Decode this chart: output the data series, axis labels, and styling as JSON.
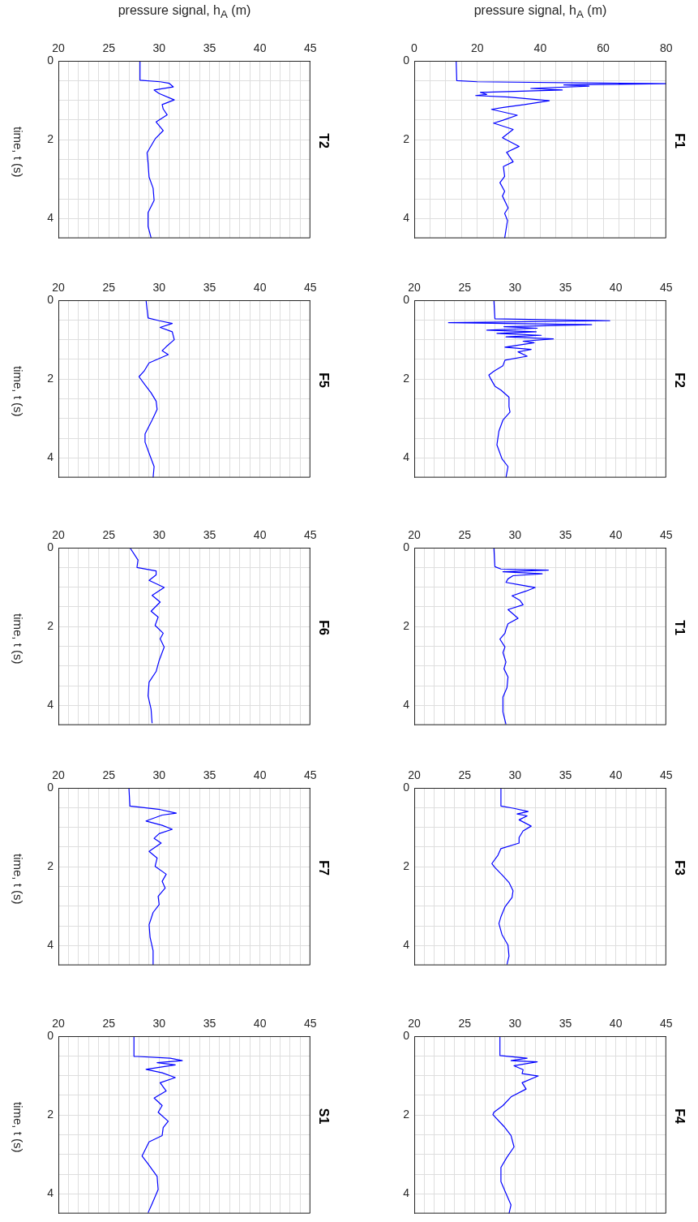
{
  "chart_data": [
    {
      "type": "line",
      "title": "F1",
      "xlabel": "pressure signal,  h$_{A}$ (m)",
      "color": "#0000ff",
      "grid": true,
      "ylim": [
        4.5,
        0
      ],
      "yticks": [
        0,
        {
          "value": 0.5,
          "label": null
        },
        {
          "value": 1,
          "label": null
        },
        {
          "value": 1.5,
          "label": null
        },
        2,
        {
          "value": 2.5,
          "label": null
        },
        {
          "value": 3,
          "label": null
        },
        {
          "value": 3.5,
          "label": null
        },
        4,
        {
          "value": 4.5,
          "label": null
        }
      ],
      "xlim": [
        0,
        80
      ],
      "xticks": [
        0,
        {
          "value": 5,
          "label": null
        },
        {
          "value": 10,
          "label": null
        },
        {
          "value": 15,
          "label": null
        },
        20,
        {
          "value": 25,
          "label": null
        },
        {
          "value": 30,
          "label": null
        },
        {
          "value": 35,
          "label": null
        },
        40,
        {
          "value": 45,
          "label": null
        },
        {
          "value": 50,
          "label": null
        },
        {
          "value": 55,
          "label": null
        },
        60,
        {
          "value": 65,
          "label": null
        },
        {
          "value": 70,
          "label": null
        },
        {
          "value": 75,
          "label": null
        },
        80
      ],
      "values": [
        0,
        0.5,
        0.53,
        0.58,
        0.61,
        0.64,
        0.7,
        0.74,
        0.8,
        0.85,
        0.88,
        0.92,
        1.01,
        1.11,
        1.18,
        1.23,
        1.38,
        1.51,
        1.58,
        1.74,
        1.95,
        2.17,
        2.32,
        2.56,
        2.68,
        2.93,
        3.09,
        3.31,
        3.43,
        3.73,
        3.87,
        4.05,
        4.5
      ],
      "x": [
        13.3,
        13.5,
        20,
        80,
        47.5,
        55.5,
        37,
        47,
        21,
        23,
        19.5,
        30,
        42.9,
        35,
        28.3,
        24.5,
        32.7,
        28,
        25.2,
        31.4,
        28,
        33.3,
        29.3,
        31.4,
        28.3,
        28.7,
        27.2,
        28.7,
        28,
        29.8,
        28.7,
        29.6,
        28.7
      ]
    },
    {
      "type": "line",
      "title": "F2",
      "color": "#0000ff",
      "grid": true,
      "ylim": [
        4.5,
        0
      ],
      "yticks": [
        0,
        {
          "value": 0.5,
          "label": null
        },
        {
          "value": 1,
          "label": null
        },
        {
          "value": 1.5,
          "label": null
        },
        2,
        {
          "value": 2.5,
          "label": null
        },
        {
          "value": 3,
          "label": null
        },
        {
          "value": 3.5,
          "label": null
        },
        4,
        {
          "value": 4.5,
          "label": null
        }
      ],
      "xlim": [
        20,
        45
      ],
      "xticks": [
        20,
        {
          "value": 21,
          "label": null
        },
        {
          "value": 22,
          "label": null
        },
        {
          "value": 23,
          "label": null
        },
        {
          "value": 24,
          "label": null
        },
        25,
        {
          "value": 26,
          "label": null
        },
        {
          "value": 27,
          "label": null
        },
        {
          "value": 28,
          "label": null
        },
        {
          "value": 29,
          "label": null
        },
        30,
        {
          "value": 31,
          "label": null
        },
        {
          "value": 32,
          "label": null
        },
        {
          "value": 33,
          "label": null
        },
        {
          "value": 34,
          "label": null
        },
        35,
        {
          "value": 36,
          "label": null
        },
        {
          "value": 37,
          "label": null
        },
        {
          "value": 38,
          "label": null
        },
        {
          "value": 39,
          "label": null
        },
        40,
        {
          "value": 41,
          "label": null
        },
        {
          "value": 42,
          "label": null
        },
        {
          "value": 43,
          "label": null
        },
        {
          "value": 44,
          "label": null
        },
        45
      ],
      "values": [
        0,
        0.47,
        0.52,
        0.57,
        0.62,
        0.67,
        0.71,
        0.76,
        0.8,
        0.84,
        0.89,
        0.93,
        0.98,
        1.04,
        1.08,
        1.19,
        1.25,
        1.31,
        1.42,
        1.52,
        1.66,
        1.8,
        1.9,
        2.0,
        2.18,
        2.28,
        2.46,
        2.7,
        2.84,
        3.04,
        3.32,
        3.67,
        4.02,
        4.22,
        4.5
      ],
      "x": [
        27.9,
        28.0,
        39.4,
        23.4,
        37.6,
        28.9,
        32.2,
        27.2,
        32.1,
        28.2,
        32.6,
        29.1,
        33.8,
        30.8,
        31.9,
        29.0,
        31.6,
        30.3,
        31.2,
        29.0,
        28.8,
        27.9,
        27.4,
        27.6,
        28.0,
        28.6,
        29.4,
        29.4,
        29.5,
        28.8,
        28.4,
        28.2,
        28.7,
        29.3,
        29.1
      ]
    },
    {
      "type": "line",
      "title": "T1",
      "color": "#0000ff",
      "grid": true,
      "ylim": [
        4.5,
        0
      ],
      "yticks": [
        0,
        {
          "value": 0.5,
          "label": null
        },
        {
          "value": 1,
          "label": null
        },
        {
          "value": 1.5,
          "label": null
        },
        2,
        {
          "value": 2.5,
          "label": null
        },
        {
          "value": 3,
          "label": null
        },
        {
          "value": 3.5,
          "label": null
        },
        4,
        {
          "value": 4.5,
          "label": null
        }
      ],
      "xlim": [
        20,
        45
      ],
      "xticks": [
        20,
        {
          "value": 21,
          "label": null
        },
        {
          "value": 22,
          "label": null
        },
        {
          "value": 23,
          "label": null
        },
        {
          "value": 24,
          "label": null
        },
        25,
        {
          "value": 26,
          "label": null
        },
        {
          "value": 27,
          "label": null
        },
        {
          "value": 28,
          "label": null
        },
        {
          "value": 29,
          "label": null
        },
        30,
        {
          "value": 31,
          "label": null
        },
        {
          "value": 32,
          "label": null
        },
        {
          "value": 33,
          "label": null
        },
        {
          "value": 34,
          "label": null
        },
        35,
        {
          "value": 36,
          "label": null
        },
        {
          "value": 37,
          "label": null
        },
        {
          "value": 38,
          "label": null
        },
        {
          "value": 39,
          "label": null
        },
        40,
        {
          "value": 41,
          "label": null
        },
        {
          "value": 42,
          "label": null
        },
        {
          "value": 43,
          "label": null
        },
        {
          "value": 44,
          "label": null
        },
        45
      ],
      "values": [
        0,
        0.48,
        0.54,
        0.57,
        0.61,
        0.66,
        0.71,
        0.79,
        0.88,
        0.94,
        1.01,
        1.1,
        1.22,
        1.34,
        1.45,
        1.57,
        1.79,
        1.93,
        2.07,
        2.17,
        2.32,
        2.52,
        2.66,
        2.9,
        3.07,
        3.28,
        3.55,
        3.79,
        4.17,
        4.48
      ],
      "x": [
        27.9,
        28.0,
        28.6,
        33.3,
        28.8,
        32.7,
        29.8,
        29.3,
        29.1,
        30.4,
        32.0,
        31.1,
        29.7,
        30.5,
        30.8,
        29.3,
        30.3,
        29.3,
        29.1,
        29.0,
        28.5,
        29.0,
        28.8,
        29.1,
        28.9,
        29.3,
        29.2,
        28.8,
        28.8,
        29.1
      ]
    },
    {
      "type": "line",
      "title": "F3",
      "color": "#0000ff",
      "grid": true,
      "ylim": [
        4.5,
        0
      ],
      "yticks": [
        0,
        {
          "value": 0.5,
          "label": null
        },
        {
          "value": 1,
          "label": null
        },
        {
          "value": 1.5,
          "label": null
        },
        2,
        {
          "value": 2.5,
          "label": null
        },
        {
          "value": 3,
          "label": null
        },
        {
          "value": 3.5,
          "label": null
        },
        4,
        {
          "value": 4.5,
          "label": null
        }
      ],
      "xlim": [
        20,
        45
      ],
      "xticks": [
        20,
        {
          "value": 21,
          "label": null
        },
        {
          "value": 22,
          "label": null
        },
        {
          "value": 23,
          "label": null
        },
        {
          "value": 24,
          "label": null
        },
        25,
        {
          "value": 26,
          "label": null
        },
        {
          "value": 27,
          "label": null
        },
        {
          "value": 28,
          "label": null
        },
        {
          "value": 29,
          "label": null
        },
        30,
        {
          "value": 31,
          "label": null
        },
        {
          "value": 32,
          "label": null
        },
        {
          "value": 33,
          "label": null
        },
        {
          "value": 34,
          "label": null
        },
        35,
        {
          "value": 36,
          "label": null
        },
        {
          "value": 37,
          "label": null
        },
        {
          "value": 38,
          "label": null
        },
        {
          "value": 39,
          "label": null
        },
        40,
        {
          "value": 41,
          "label": null
        },
        {
          "value": 42,
          "label": null
        },
        {
          "value": 43,
          "label": null
        },
        {
          "value": 44,
          "label": null
        },
        45
      ],
      "values": [
        0,
        0.46,
        0.52,
        0.6,
        0.66,
        0.71,
        0.81,
        0.97,
        1.09,
        1.26,
        1.4,
        1.54,
        1.71,
        1.92,
        2.02,
        2.23,
        2.4,
        2.61,
        2.78,
        3.02,
        3.27,
        3.44,
        3.72,
        3.99,
        4.27,
        4.48
      ],
      "x": [
        28.6,
        28.6,
        29.9,
        31.3,
        30.2,
        31.2,
        30.4,
        31.6,
        30.8,
        30.4,
        30.4,
        28.6,
        28.3,
        27.7,
        28.0,
        28.8,
        29.4,
        29.8,
        29.7,
        29.0,
        28.6,
        28.4,
        28.7,
        29.3,
        29.4,
        29.2
      ]
    },
    {
      "type": "line",
      "title": "F4",
      "color": "#0000ff",
      "grid": true,
      "ylim": [
        4.5,
        0
      ],
      "yticks": [
        0,
        {
          "value": 0.5,
          "label": null
        },
        {
          "value": 1,
          "label": null
        },
        {
          "value": 1.5,
          "label": null
        },
        2,
        {
          "value": 2.5,
          "label": null
        },
        {
          "value": 3,
          "label": null
        },
        {
          "value": 3.5,
          "label": null
        },
        4,
        {
          "value": 4.5,
          "label": null
        }
      ],
      "xlim": [
        20,
        45
      ],
      "xticks": [
        20,
        {
          "value": 21,
          "label": null
        },
        {
          "value": 22,
          "label": null
        },
        {
          "value": 23,
          "label": null
        },
        {
          "value": 24,
          "label": null
        },
        25,
        {
          "value": 26,
          "label": null
        },
        {
          "value": 27,
          "label": null
        },
        {
          "value": 28,
          "label": null
        },
        {
          "value": 29,
          "label": null
        },
        30,
        {
          "value": 31,
          "label": null
        },
        {
          "value": 32,
          "label": null
        },
        {
          "value": 33,
          "label": null
        },
        {
          "value": 34,
          "label": null
        },
        35,
        {
          "value": 36,
          "label": null
        },
        {
          "value": 37,
          "label": null
        },
        {
          "value": 38,
          "label": null
        },
        {
          "value": 39,
          "label": null
        },
        40,
        {
          "value": 41,
          "label": null
        },
        {
          "value": 42,
          "label": null
        },
        {
          "value": 43,
          "label": null
        },
        {
          "value": 44,
          "label": null
        },
        45
      ],
      "values": [
        0,
        0.49,
        0.56,
        0.62,
        0.65,
        0.75,
        0.85,
        0.95,
        1.01,
        1.18,
        1.34,
        1.54,
        1.76,
        1.93,
        1.99,
        2.29,
        2.52,
        2.81,
        3.07,
        3.33,
        3.69,
        3.99,
        4.28,
        4.5
      ],
      "x": [
        28.5,
        28.5,
        31.2,
        29.6,
        32.2,
        29.9,
        30.8,
        30.7,
        32.3,
        30.7,
        31.1,
        29.6,
        28.8,
        27.9,
        27.8,
        28.9,
        29.6,
        29.9,
        29.2,
        28.6,
        28.6,
        29.1,
        29.6,
        29.4
      ]
    },
    {
      "type": "line",
      "title": "T2",
      "xlabel": "pressure signal,  h$_{A}$ (m)",
      "ylabel": "time, t (s)",
      "color": "#0000ff",
      "grid": true,
      "ylim": [
        4.5,
        0
      ],
      "yticks": [
        0,
        {
          "value": 0.5,
          "label": null
        },
        {
          "value": 1,
          "label": null
        },
        {
          "value": 1.5,
          "label": null
        },
        2,
        {
          "value": 2.5,
          "label": null
        },
        {
          "value": 3,
          "label": null
        },
        {
          "value": 3.5,
          "label": null
        },
        4,
        {
          "value": 4.5,
          "label": null
        }
      ],
      "xlim": [
        20,
        45
      ],
      "xticks": [
        20,
        {
          "value": 21,
          "label": null
        },
        {
          "value": 22,
          "label": null
        },
        {
          "value": 23,
          "label": null
        },
        {
          "value": 24,
          "label": null
        },
        25,
        {
          "value": 26,
          "label": null
        },
        {
          "value": 27,
          "label": null
        },
        {
          "value": 28,
          "label": null
        },
        {
          "value": 29,
          "label": null
        },
        30,
        {
          "value": 31,
          "label": null
        },
        {
          "value": 32,
          "label": null
        },
        {
          "value": 33,
          "label": null
        },
        {
          "value": 34,
          "label": null
        },
        35,
        {
          "value": 36,
          "label": null
        },
        {
          "value": 37,
          "label": null
        },
        {
          "value": 38,
          "label": null
        },
        {
          "value": 39,
          "label": null
        },
        40,
        {
          "value": 41,
          "label": null
        },
        {
          "value": 42,
          "label": null
        },
        {
          "value": 43,
          "label": null
        },
        {
          "value": 44,
          "label": null
        },
        45
      ],
      "values": [
        0,
        0.49,
        0.53,
        0.57,
        0.66,
        0.74,
        0.83,
        0.99,
        1.11,
        1.22,
        1.37,
        1.55,
        1.77,
        1.98,
        2.33,
        2.6,
        2.95,
        3.23,
        3.54,
        3.85,
        4.2,
        4.49
      ],
      "x": [
        28.1,
        28.1,
        30.1,
        31.0,
        31.4,
        29.5,
        30.0,
        31.5,
        30.3,
        30.4,
        30.8,
        29.7,
        30.4,
        29.6,
        28.8,
        28.9,
        29.0,
        29.4,
        29.5,
        28.9,
        28.9,
        29.2
      ]
    },
    {
      "type": "line",
      "title": "F5",
      "ylabel": "time, t (s)",
      "color": "#0000ff",
      "grid": true,
      "ylim": [
        4.5,
        0
      ],
      "yticks": [
        0,
        {
          "value": 0.5,
          "label": null
        },
        {
          "value": 1,
          "label": null
        },
        {
          "value": 1.5,
          "label": null
        },
        2,
        {
          "value": 2.5,
          "label": null
        },
        {
          "value": 3,
          "label": null
        },
        {
          "value": 3.5,
          "label": null
        },
        4,
        {
          "value": 4.5,
          "label": null
        }
      ],
      "xlim": [
        20,
        45
      ],
      "xticks": [
        20,
        {
          "value": 21,
          "label": null
        },
        {
          "value": 22,
          "label": null
        },
        {
          "value": 23,
          "label": null
        },
        {
          "value": 24,
          "label": null
        },
        25,
        {
          "value": 26,
          "label": null
        },
        {
          "value": 27,
          "label": null
        },
        {
          "value": 28,
          "label": null
        },
        {
          "value": 29,
          "label": null
        },
        30,
        {
          "value": 31,
          "label": null
        },
        {
          "value": 32,
          "label": null
        },
        {
          "value": 33,
          "label": null
        },
        {
          "value": 34,
          "label": null
        },
        35,
        {
          "value": 36,
          "label": null
        },
        {
          "value": 37,
          "label": null
        },
        {
          "value": 38,
          "label": null
        },
        {
          "value": 39,
          "label": null
        },
        40,
        {
          "value": 41,
          "label": null
        },
        {
          "value": 42,
          "label": null
        },
        {
          "value": 43,
          "label": null
        },
        {
          "value": 44,
          "label": null
        },
        45
      ],
      "values": [
        0,
        0.45,
        0.52,
        0.59,
        0.69,
        0.8,
        1.0,
        1.18,
        1.28,
        1.38,
        1.59,
        1.8,
        1.94,
        2.15,
        2.35,
        2.56,
        2.77,
        3.04,
        3.39,
        3.6,
        3.88,
        4.22,
        4.5
      ],
      "x": [
        28.7,
        28.9,
        30.0,
        31.3,
        30.1,
        31.3,
        31.5,
        30.7,
        30.3,
        30.9,
        29.0,
        28.5,
        28.0,
        28.6,
        29.2,
        29.7,
        29.8,
        29.3,
        28.6,
        28.6,
        29.0,
        29.5,
        29.4
      ]
    },
    {
      "type": "line",
      "title": "F6",
      "ylabel": "time, t (s)",
      "color": "#0000ff",
      "grid": true,
      "ylim": [
        4.5,
        0
      ],
      "yticks": [
        0,
        {
          "value": 0.5,
          "label": null
        },
        {
          "value": 1,
          "label": null
        },
        {
          "value": 1.5,
          "label": null
        },
        2,
        {
          "value": 2.5,
          "label": null
        },
        {
          "value": 3,
          "label": null
        },
        {
          "value": 3.5,
          "label": null
        },
        4,
        {
          "value": 4.5,
          "label": null
        }
      ],
      "xlim": [
        20,
        45
      ],
      "xticks": [
        20,
        {
          "value": 21,
          "label": null
        },
        {
          "value": 22,
          "label": null
        },
        {
          "value": 23,
          "label": null
        },
        {
          "value": 24,
          "label": null
        },
        25,
        {
          "value": 26,
          "label": null
        },
        {
          "value": 27,
          "label": null
        },
        {
          "value": 28,
          "label": null
        },
        {
          "value": 29,
          "label": null
        },
        30,
        {
          "value": 31,
          "label": null
        },
        {
          "value": 32,
          "label": null
        },
        {
          "value": 33,
          "label": null
        },
        {
          "value": 34,
          "label": null
        },
        35,
        {
          "value": 36,
          "label": null
        },
        {
          "value": 37,
          "label": null
        },
        {
          "value": 38,
          "label": null
        },
        {
          "value": 39,
          "label": null
        },
        40,
        {
          "value": 41,
          "label": null
        },
        {
          "value": 42,
          "label": null
        },
        {
          "value": 43,
          "label": null
        },
        {
          "value": 44,
          "label": null
        },
        45
      ],
      "values": [
        0,
        0.31,
        0.5,
        0.59,
        0.69,
        0.83,
        1.01,
        1.21,
        1.38,
        1.61,
        1.76,
        1.97,
        2.17,
        2.31,
        2.52,
        2.86,
        3.14,
        3.41,
        3.76,
        4.1,
        4.45
      ],
      "x": [
        27.1,
        27.9,
        27.8,
        29.7,
        29.7,
        29.0,
        30.5,
        29.3,
        30.1,
        29.2,
        29.9,
        29.6,
        30.4,
        30.1,
        30.5,
        30.0,
        29.7,
        29.0,
        28.9,
        29.2,
        29.3
      ]
    },
    {
      "type": "line",
      "title": "F7",
      "ylabel": "time, t (s)",
      "color": "#0000ff",
      "grid": true,
      "ylim": [
        4.5,
        0
      ],
      "yticks": [
        0,
        {
          "value": 0.5,
          "label": null
        },
        {
          "value": 1,
          "label": null
        },
        {
          "value": 1.5,
          "label": null
        },
        2,
        {
          "value": 2.5,
          "label": null
        },
        {
          "value": 3,
          "label": null
        },
        {
          "value": 3.5,
          "label": null
        },
        4,
        {
          "value": 4.5,
          "label": null
        }
      ],
      "xlim": [
        20,
        45
      ],
      "xticks": [
        20,
        {
          "value": 21,
          "label": null
        },
        {
          "value": 22,
          "label": null
        },
        {
          "value": 23,
          "label": null
        },
        {
          "value": 24,
          "label": null
        },
        25,
        {
          "value": 26,
          "label": null
        },
        {
          "value": 27,
          "label": null
        },
        {
          "value": 28,
          "label": null
        },
        {
          "value": 29,
          "label": null
        },
        30,
        {
          "value": 31,
          "label": null
        },
        {
          "value": 32,
          "label": null
        },
        {
          "value": 33,
          "label": null
        },
        {
          "value": 34,
          "label": null
        },
        35,
        {
          "value": 36,
          "label": null
        },
        {
          "value": 37,
          "label": null
        },
        {
          "value": 38,
          "label": null
        },
        {
          "value": 39,
          "label": null
        },
        40,
        {
          "value": 41,
          "label": null
        },
        {
          "value": 42,
          "label": null
        },
        {
          "value": 43,
          "label": null
        },
        {
          "value": 44,
          "label": null
        },
        45
      ],
      "values": [
        0,
        0.46,
        0.55,
        0.64,
        0.69,
        0.84,
        0.95,
        1.05,
        1.16,
        1.28,
        1.4,
        1.61,
        1.78,
        1.99,
        2.19,
        2.37,
        2.54,
        2.75,
        2.96,
        3.16,
        3.47,
        3.79,
        4.13,
        4.48
      ],
      "x": [
        27.0,
        27.1,
        30.1,
        31.7,
        30.3,
        28.7,
        30.3,
        31.3,
        30.0,
        29.5,
        30.2,
        29.0,
        29.8,
        29.6,
        30.7,
        30.3,
        30.6,
        29.9,
        30.0,
        29.4,
        29.0,
        29.1,
        29.4,
        29.4
      ]
    },
    {
      "type": "line",
      "title": "S1",
      "ylabel": "time, t (s)",
      "color": "#0000ff",
      "grid": true,
      "ylim": [
        4.5,
        0
      ],
      "yticks": [
        0,
        {
          "value": 0.5,
          "label": null
        },
        {
          "value": 1,
          "label": null
        },
        {
          "value": 1.5,
          "label": null
        },
        2,
        {
          "value": 2.5,
          "label": null
        },
        {
          "value": 3,
          "label": null
        },
        {
          "value": 3.5,
          "label": null
        },
        4,
        {
          "value": 4.5,
          "label": null
        }
      ],
      "xlim": [
        20,
        45
      ],
      "xticks": [
        20,
        {
          "value": 21,
          "label": null
        },
        {
          "value": 22,
          "label": null
        },
        {
          "value": 23,
          "label": null
        },
        {
          "value": 24,
          "label": null
        },
        25,
        {
          "value": 26,
          "label": null
        },
        {
          "value": 27,
          "label": null
        },
        {
          "value": 28,
          "label": null
        },
        {
          "value": 29,
          "label": null
        },
        30,
        {
          "value": 31,
          "label": null
        },
        {
          "value": 32,
          "label": null
        },
        {
          "value": 33,
          "label": null
        },
        {
          "value": 34,
          "label": null
        },
        35,
        {
          "value": 36,
          "label": null
        },
        {
          "value": 37,
          "label": null
        },
        {
          "value": 38,
          "label": null
        },
        {
          "value": 39,
          "label": null
        },
        40,
        {
          "value": 41,
          "label": null
        },
        {
          "value": 42,
          "label": null
        },
        {
          "value": 43,
          "label": null
        },
        {
          "value": 44,
          "label": null
        },
        45
      ],
      "values": [
        0,
        0.51,
        0.56,
        0.62,
        0.67,
        0.73,
        0.84,
        0.93,
        1.05,
        1.18,
        1.39,
        1.57,
        1.76,
        1.93,
        2.16,
        2.32,
        2.52,
        2.68,
        3.04,
        3.24,
        3.56,
        3.89,
        4.25,
        4.48
      ],
      "x": [
        27.5,
        27.5,
        31.1,
        32.3,
        29.8,
        31.6,
        28.7,
        30.3,
        31.6,
        30.1,
        30.7,
        29.5,
        30.3,
        29.9,
        30.9,
        30.4,
        30.3,
        29.0,
        28.3,
        28.9,
        29.8,
        29.9,
        29.3,
        28.9
      ]
    }
  ]
}
